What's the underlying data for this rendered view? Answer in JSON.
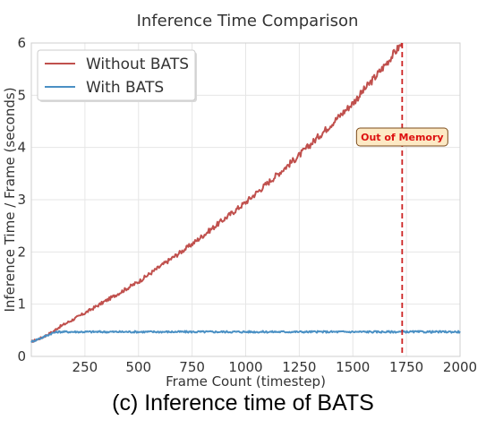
{
  "chart_data": {
    "type": "line",
    "title": "Inference Time Comparison",
    "xlabel": "Frame Count (timestep)",
    "ylabel": "Inference Time / Frame (seconds)",
    "xlim": [
      0,
      2000
    ],
    "ylim": [
      0,
      6
    ],
    "xticks": [
      250,
      500,
      750,
      1000,
      1250,
      1500,
      1750,
      2000
    ],
    "yticks": [
      0,
      1,
      2,
      3,
      4,
      5,
      6
    ],
    "grid": true,
    "legend_position": "top-left",
    "series": [
      {
        "name": "Without BATS",
        "color": "#c0504d",
        "x": [
          0,
          50,
          100,
          125,
          250,
          500,
          750,
          1000,
          1250,
          1500,
          1625,
          1730
        ],
        "y": [
          0.28,
          0.36,
          0.47,
          0.55,
          0.83,
          1.43,
          2.15,
          2.95,
          3.85,
          4.85,
          5.45,
          6.0
        ]
      },
      {
        "name": "With BATS",
        "color": "#4a90c4",
        "x": [
          0,
          50,
          100,
          125,
          250,
          500,
          750,
          1000,
          1250,
          1500,
          1750,
          2000
        ],
        "y": [
          0.28,
          0.36,
          0.45,
          0.47,
          0.47,
          0.47,
          0.47,
          0.47,
          0.47,
          0.47,
          0.47,
          0.47
        ]
      }
    ],
    "annotations": [
      {
        "type": "vline",
        "x": 1730,
        "color": "#cc2222",
        "style": "dashed"
      },
      {
        "type": "label",
        "text": "Out of Memory",
        "x": 1730,
        "y": 4.2,
        "color": "#dd1111",
        "background": "#fde9c4"
      }
    ]
  },
  "caption": "(c) Inference time of BATS"
}
